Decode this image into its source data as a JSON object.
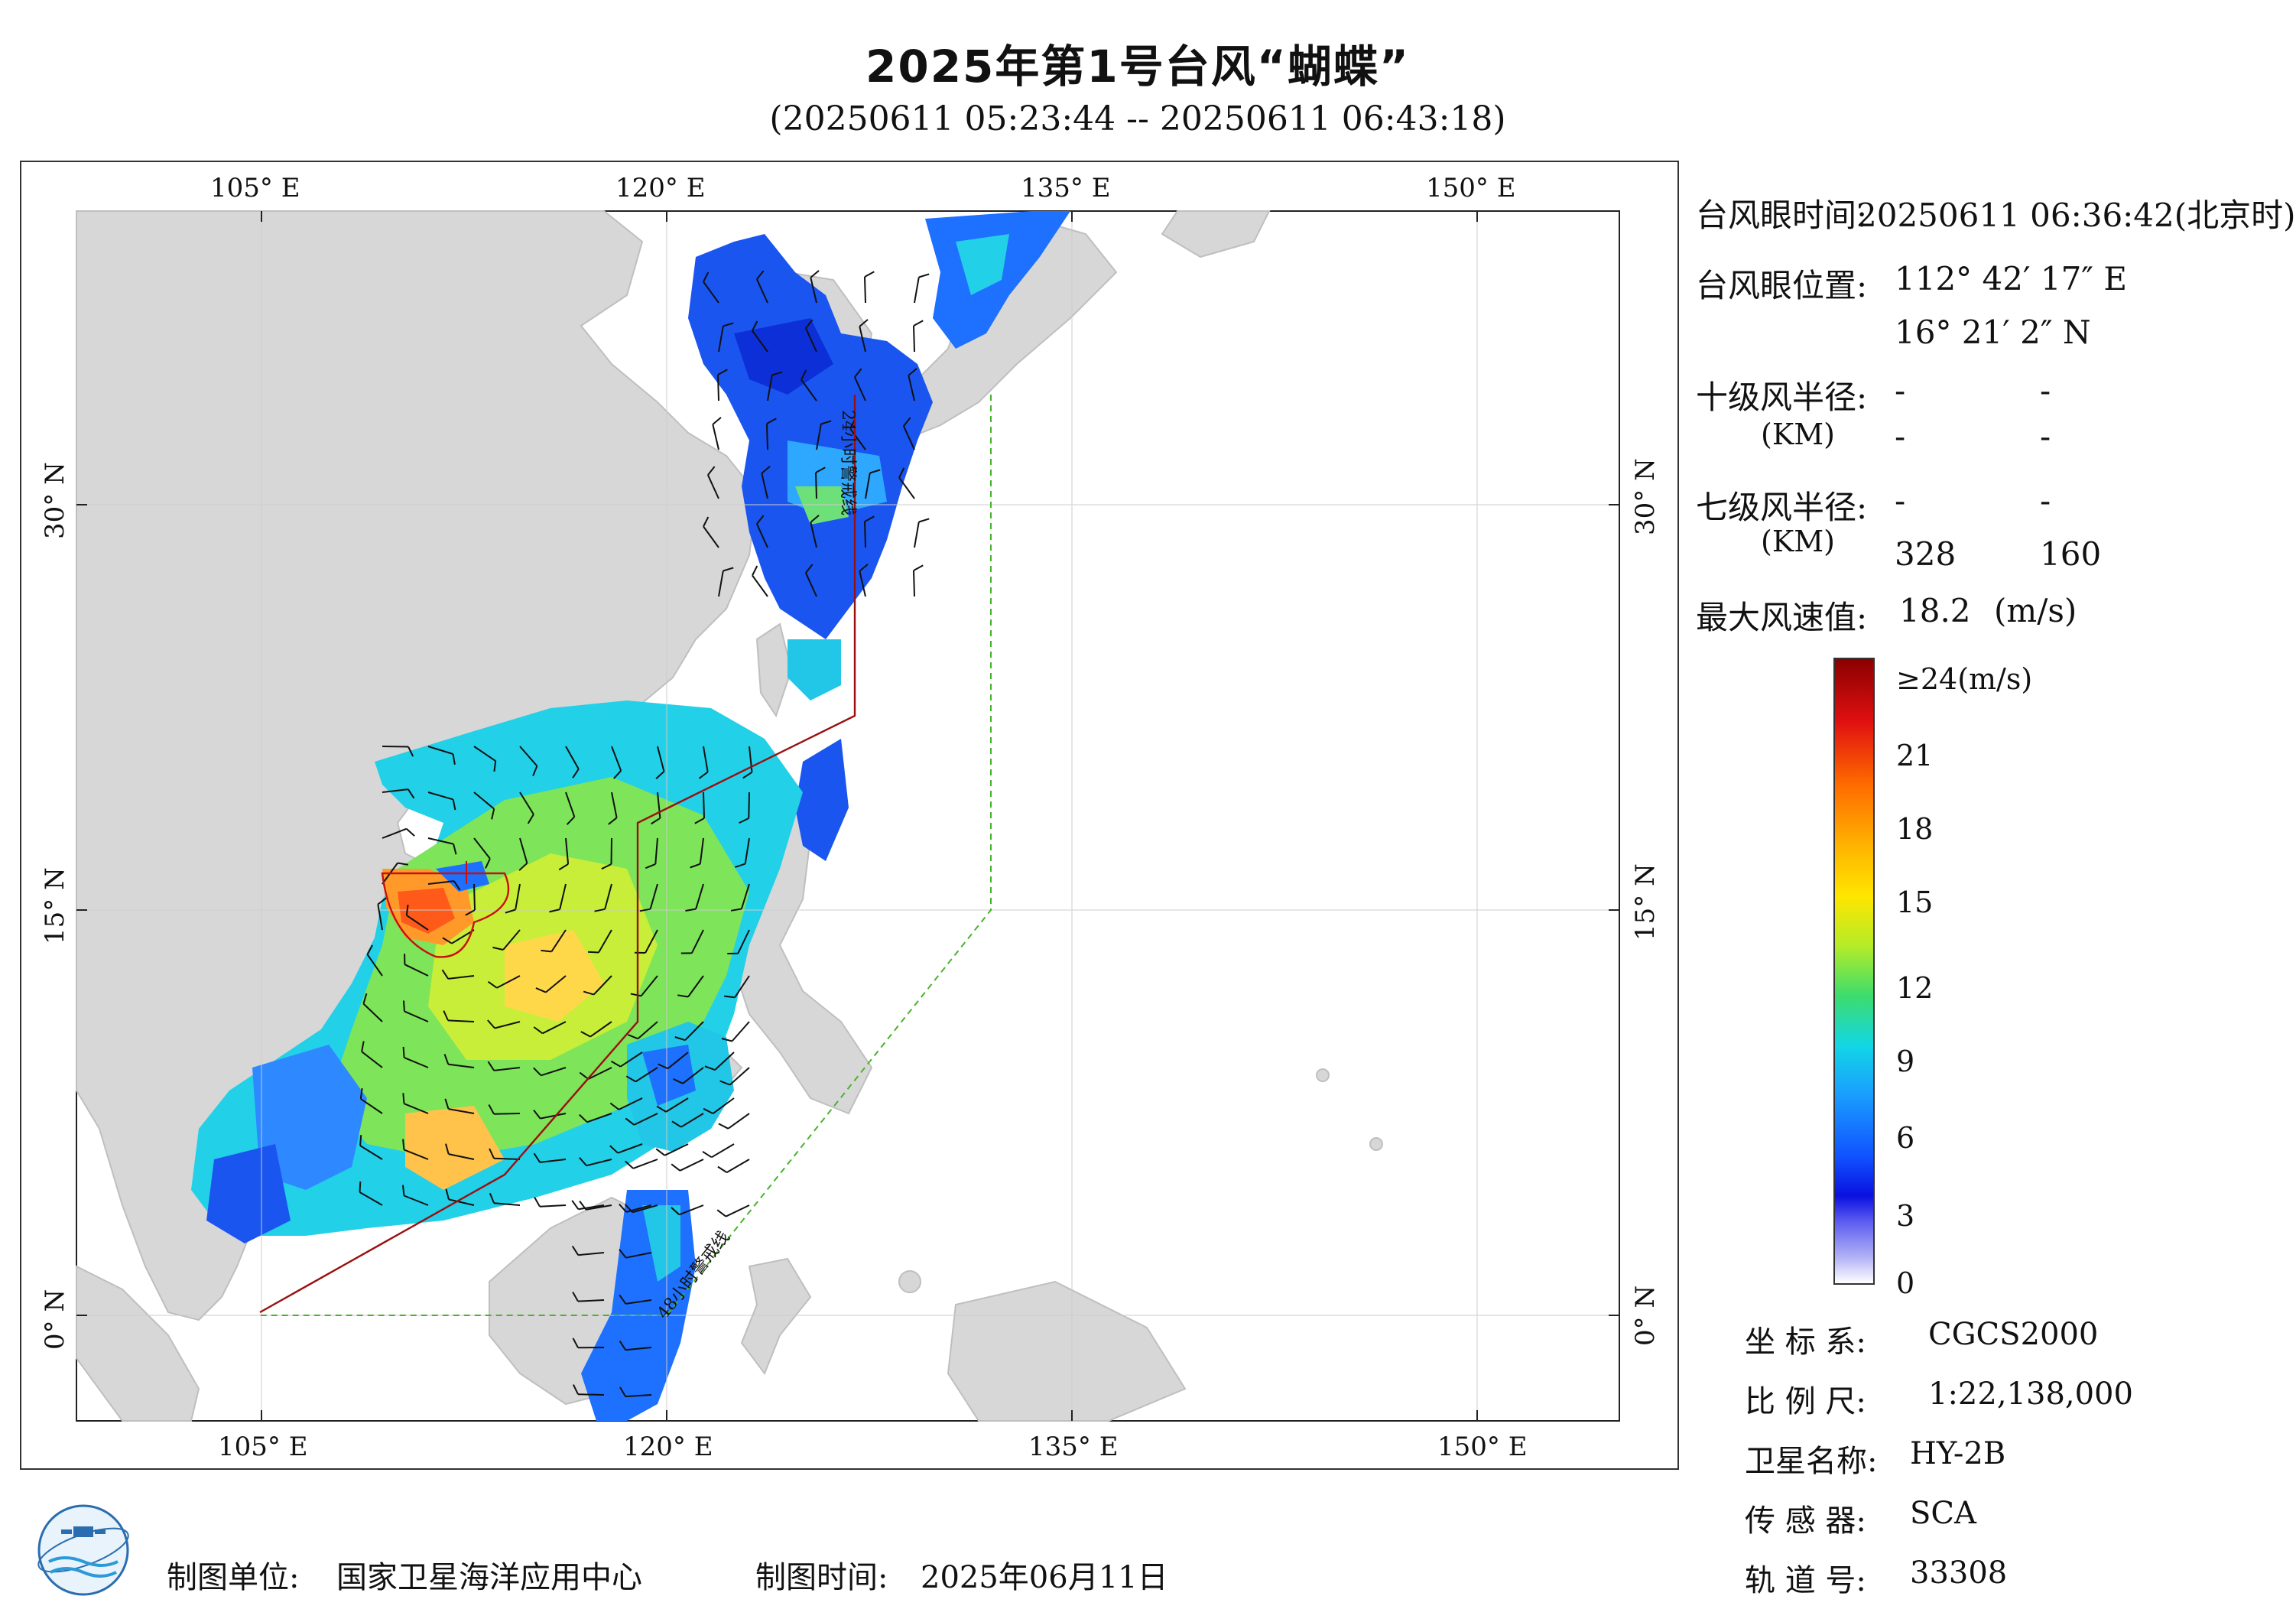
{
  "title": "2025年第1号台风“蝴蝶”",
  "subtitle": "(20250611 05:23:44 -- 20250611 06:43:18)",
  "axes": {
    "lon_labels": [
      "105° E",
      "120° E",
      "135° E",
      "150° E"
    ],
    "lat_labels": [
      "30° N",
      "15° N",
      "0° N"
    ]
  },
  "map_labels": {
    "line_24h": "24小时警戒线",
    "line_48h": "48小时警戒线"
  },
  "info": {
    "eye_time_label": "台风眼时间:",
    "eye_time_value": "20250611 06:36:42(北京时)",
    "eye_pos_label": "台风眼位置:",
    "eye_lon": "112° 42′ 17″ E",
    "eye_lat": "16° 21′ 2″ N",
    "r10_label": "十级风半径:",
    "r10_unit": "(KM)",
    "r10_row1": [
      "-",
      "-"
    ],
    "r10_row2": [
      "-",
      "-"
    ],
    "r7_label": "七级风半径:",
    "r7_unit": "(KM)",
    "r7_row1": [
      "-",
      "-"
    ],
    "r7_row2": [
      "328",
      "160"
    ],
    "max_wind_label": "最大风速值:",
    "max_wind_value": "18.2",
    "max_wind_unit": "(m/s)"
  },
  "colorbar": {
    "top_label": "≥24(m/s)",
    "labels": [
      "21",
      "18",
      "15",
      "12",
      "9",
      "6",
      "3",
      "0"
    ],
    "colors": [
      "#8b0000",
      "#ff2a00",
      "#ff8c00",
      "#ffd700",
      "#c8f000",
      "#5ae05a",
      "#00e0e0",
      "#00aaff",
      "#1060ff",
      "#0a20e0",
      "#6060ff",
      "#ffffff"
    ]
  },
  "meta": {
    "crs_label": "坐 标 系:",
    "crs_value": "CGCS2000",
    "scale_label": "比 例 尺:",
    "scale_value": "1:22,138,000",
    "sat_label": "卫星名称:",
    "sat_value": "HY-2B",
    "sensor_label": "传 感 器:",
    "sensor_value": "SCA",
    "orbit_label": "轨 道 号:",
    "orbit_value": "33308"
  },
  "footer": {
    "maker_label": "制图单位:",
    "maker_value": "国家卫星海洋应用中心",
    "date_label": "制图时间:",
    "date_value": "2025年06月11日"
  }
}
